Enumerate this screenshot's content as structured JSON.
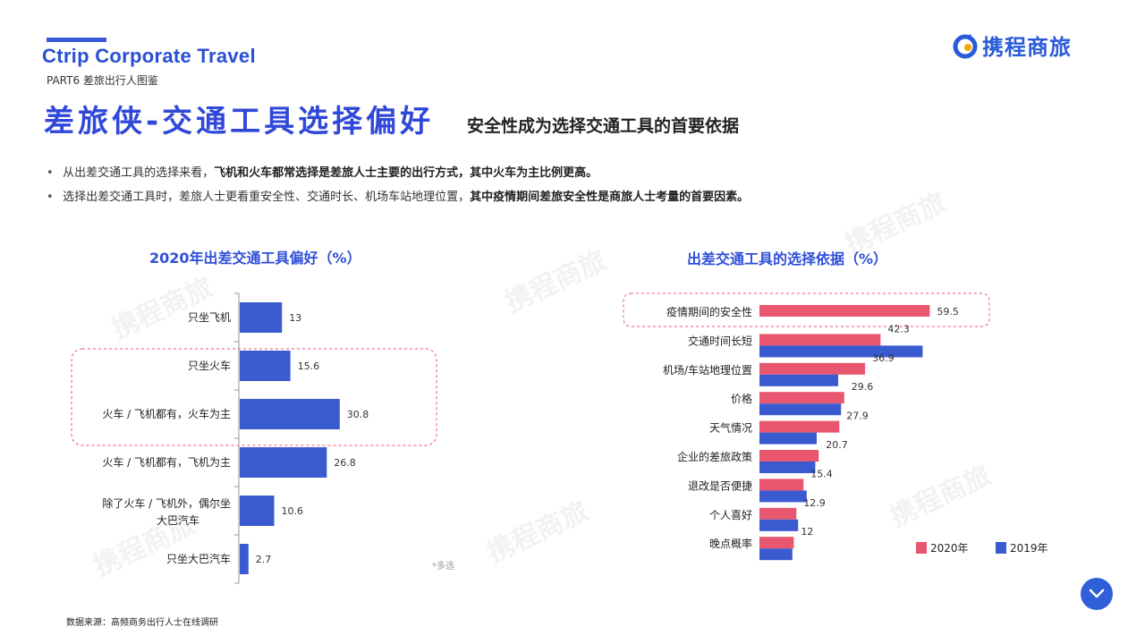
{
  "header": {
    "brand_en": "Ctrip Corporate Travel",
    "part": "PART6 差旅出行人图鉴",
    "logo_text": "携程商旅",
    "title_main": "差旅侠-交通工具选择偏好",
    "title_sub": "安全性成为选择交通工具的首要依据"
  },
  "bullets": [
    {
      "normal": "从出差交通工具的选择来看，",
      "bold": "飞机和火车都常选择是差旅人士主要的出行方式，其中火车为主比例更高。"
    },
    {
      "normal": "选择出差交通工具时，差旅人士更看重安全性、交通时长、机场车站地理位置，",
      "bold": "其中疫情期间差旅安全性是商旅人士考量的首要因素。"
    }
  ],
  "watermark": "携程商旅",
  "footnote": "数据来源：高频商务出行人士在线调研",
  "chart_data": [
    {
      "type": "bar",
      "orientation": "horizontal",
      "title": "2020年出差交通工具偏好（%）",
      "categories": [
        "只坐飞机",
        "只坐火车",
        "火车 / 飞机都有，火车为主",
        "火车 / 飞机都有，飞机为主",
        "除了火车 / 飞机外，偶尔坐大巴汽车",
        "只坐大巴汽车"
      ],
      "values": [
        13,
        15.6,
        30.8,
        26.8,
        10.6,
        2.7
      ],
      "xlim": [
        0,
        100
      ],
      "color": "#3a5ad0",
      "highlight_categories": [
        "只坐火车",
        "火车 / 飞机都有，火车为主"
      ],
      "note": "*多选"
    },
    {
      "type": "bar",
      "orientation": "horizontal",
      "title": "出差交通工具的选择依据（%）",
      "categories": [
        "疫情期间的安全性",
        "交通时间长短",
        "机场/车站地理位置",
        "价格",
        "天气情况",
        "企业的差旅政策",
        "退改是否便捷",
        "个人喜好",
        "晚点概率"
      ],
      "series": [
        {
          "name": "2020年",
          "color": "#e8566f",
          "values": [
            59.5,
            42.3,
            36.9,
            29.6,
            27.9,
            20.7,
            15.4,
            12.9,
            12
          ]
        },
        {
          "name": "2019年",
          "color": "#3a5ad0",
          "values": [
            null,
            57,
            27.5,
            28.5,
            20,
            19.5,
            16.5,
            13.5,
            11.5
          ]
        }
      ],
      "xlim": [
        0,
        100
      ],
      "legend_position": "bottom-right",
      "highlight_categories": [
        "疫情期间的安全性"
      ]
    }
  ]
}
